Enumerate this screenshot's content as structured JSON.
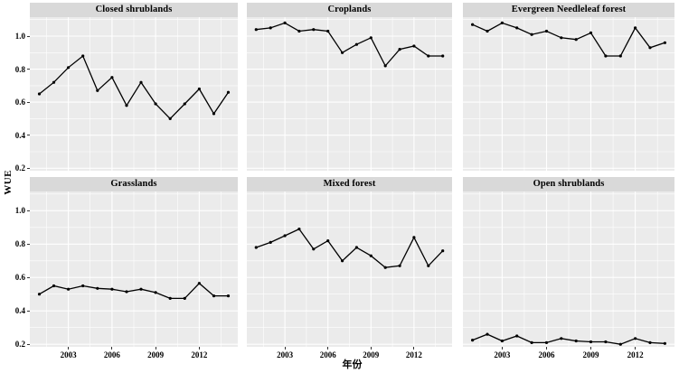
{
  "figure": {
    "background": "#FFFFFF"
  },
  "chart_data": {
    "type": "line",
    "title": "",
    "xlabel": "年份",
    "ylabel": "WUE",
    "facet_layout": "2 rows x 3 columns",
    "x": [
      2001,
      2002,
      2003,
      2004,
      2005,
      2006,
      2007,
      2008,
      2009,
      2010,
      2011,
      2012,
      2013,
      2014
    ],
    "x_ticks": [
      2003,
      2006,
      2009,
      2012
    ],
    "x_minor_ticks": [
      2001.5,
      2004.5,
      2007.5,
      2010.5,
      2013.5
    ],
    "y_ticks": [
      "1.0",
      "0.8",
      "0.6",
      "0.4",
      "0.2"
    ],
    "y_minor_ticks": [
      1.1,
      0.9,
      0.7,
      0.5,
      0.3
    ],
    "ylim": [
      0.185,
      1.115
    ],
    "xlim": [
      2000.35,
      2014.65
    ],
    "grid": true,
    "legend": "none",
    "marker": "point",
    "facets": [
      {
        "title": "Closed shrublands",
        "values": [
          0.65,
          0.72,
          0.81,
          0.88,
          0.67,
          0.75,
          0.58,
          0.72,
          0.59,
          0.5,
          0.59,
          0.68,
          0.53,
          0.66
        ]
      },
      {
        "title": "Croplands",
        "values": [
          1.04,
          1.05,
          1.08,
          1.03,
          1.04,
          1.03,
          0.9,
          0.95,
          0.99,
          0.82,
          0.92,
          0.94,
          0.88,
          0.88
        ]
      },
      {
        "title": "Evergreen Needleleaf forest",
        "values": [
          1.07,
          1.03,
          1.08,
          1.05,
          1.01,
          1.03,
          0.99,
          0.98,
          1.02,
          0.88,
          0.88,
          1.05,
          0.93,
          0.96
        ]
      },
      {
        "title": "Grasslands",
        "values": [
          0.5,
          0.55,
          0.53,
          0.55,
          0.535,
          0.53,
          0.515,
          0.53,
          0.51,
          0.475,
          0.475,
          0.565,
          0.49,
          0.49
        ]
      },
      {
        "title": "Mixed forest",
        "values": [
          0.78,
          0.81,
          0.85,
          0.89,
          0.77,
          0.82,
          0.7,
          0.78,
          0.73,
          0.66,
          0.67,
          0.84,
          0.67,
          0.76
        ]
      },
      {
        "title": "Open shrublands",
        "values": [
          0.225,
          0.26,
          0.22,
          0.25,
          0.21,
          0.21,
          0.235,
          0.22,
          0.215,
          0.215,
          0.2,
          0.235,
          0.21,
          0.205
        ]
      }
    ],
    "style": {
      "panel_bg": "#EBEBEB",
      "strip_bg": "#D9D9D9",
      "grid_color": "#FFFFFF",
      "line_color": "#000000",
      "point_color": "#000000",
      "tick_color": "#333333",
      "text_color": "#000000"
    }
  }
}
